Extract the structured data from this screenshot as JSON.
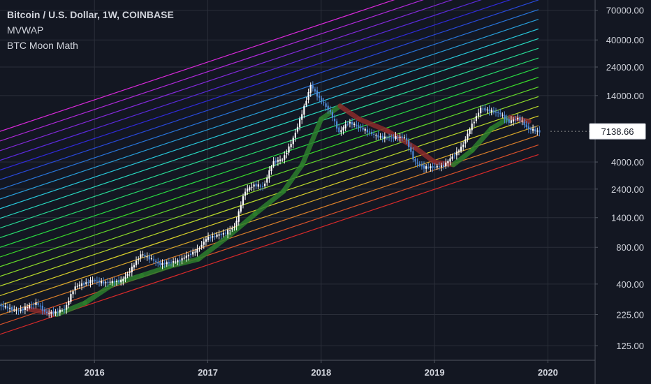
{
  "legend": {
    "title": "Bitcoin / U.S. Dollar, 1W, COINBASE",
    "indicator_1": "MVWAP",
    "indicator_2": "BTC Moon Math"
  },
  "price_label": "7138.66",
  "colors": {
    "background": "#131722",
    "grid": "#2a2e39",
    "axis_text": "#d1d4dc",
    "candle_up": "#ffffff",
    "candle_down": "#4f8ad8",
    "mvwap_up": "#2d7f2d",
    "mvwap_down": "#8a2a2a"
  },
  "chart_data": {
    "type": "line",
    "y_scale": "log",
    "ylim": [
      95,
      85000
    ],
    "xlim": [
      "2015-03",
      "2020-06"
    ],
    "x_ticks": [
      "2016",
      "2017",
      "2018",
      "2019",
      "2020"
    ],
    "y_ticks": [
      "70000.00",
      "40000.00",
      "24000.00",
      "14000.00",
      "7138.66",
      "4000.00",
      "2400.00",
      "1400.00",
      "800.00",
      "400.00",
      "225.00",
      "125.00"
    ],
    "last_price": 7138.66,
    "series": [
      {
        "role": "price",
        "x": [
          "2015-03",
          "2015-05",
          "2015-07",
          "2015-08",
          "2015-09",
          "2015-10",
          "2015-11",
          "2016-01",
          "2016-02",
          "2016-04",
          "2016-05",
          "2016-06",
          "2016-07",
          "2016-08",
          "2016-10",
          "2016-12",
          "2017-01",
          "2017-02",
          "2017-03",
          "2017-04",
          "2017-05",
          "2017-06",
          "2017-07",
          "2017-08",
          "2017-09",
          "2017-10",
          "2017-11",
          "2017-12",
          "2018-01",
          "2018-02",
          "2018-03",
          "2018-04",
          "2018-05",
          "2018-07",
          "2018-08",
          "2018-10",
          "2018-11",
          "2018-12",
          "2019-02",
          "2019-04",
          "2019-05",
          "2019-06",
          "2019-07",
          "2019-08",
          "2019-09",
          "2019-10",
          "2019-11",
          "2019-12"
        ],
        "y": [
          270,
          240,
          280,
          230,
          235,
          250,
          380,
          430,
          410,
          425,
          530,
          700,
          650,
          580,
          620,
          760,
          950,
          1000,
          1050,
          1200,
          2300,
          2600,
          2500,
          4000,
          4200,
          5800,
          9500,
          17000,
          13000,
          10500,
          7000,
          8500,
          7800,
          6500,
          6300,
          6400,
          4000,
          3600,
          3700,
          5300,
          7900,
          11000,
          10500,
          10000,
          8500,
          9200,
          7500,
          7139
        ]
      },
      {
        "role": "mvwap",
        "x": [
          "2015-06",
          "2015-09",
          "2015-12",
          "2016-03",
          "2016-06",
          "2016-09",
          "2016-12",
          "2017-03",
          "2017-06",
          "2017-09",
          "2017-11",
          "2018-01",
          "2018-03",
          "2018-05",
          "2018-08",
          "2018-11",
          "2019-01",
          "2019-03",
          "2019-05",
          "2019-07",
          "2019-09",
          "2019-11"
        ],
        "y": [
          250,
          225,
          280,
          400,
          470,
          560,
          640,
          960,
          1500,
          2300,
          3800,
          9000,
          11500,
          9000,
          7200,
          5200,
          4000,
          3800,
          5000,
          7500,
          9300,
          8600
        ]
      }
    ],
    "moon_math_bands": {
      "count": 22,
      "band_ratio": 1.2,
      "base": {
        "x": [
          "2015-03",
          "2019-12"
        ],
        "y": [
          155,
          4600
        ]
      }
    }
  }
}
